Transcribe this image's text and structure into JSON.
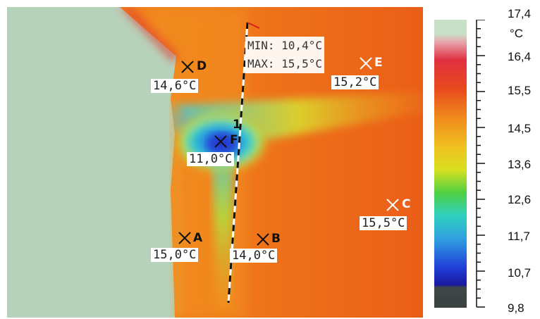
{
  "image": {
    "colors": {
      "background_hot": "#f07a1a",
      "wall": "#b7d2bb",
      "cold_core": "#1a45d6"
    }
  },
  "markers": [
    {
      "id": "A",
      "value": "15,0°C"
    },
    {
      "id": "B",
      "value": "14,0°C"
    },
    {
      "id": "C",
      "value": "15,5°C"
    },
    {
      "id": "D",
      "value": "14,6°C"
    },
    {
      "id": "E",
      "value": "15,2°C"
    },
    {
      "id": "F",
      "value": "11,0°C"
    }
  ],
  "profile_line": {
    "id": "1",
    "min": "MIN: 10,4°C",
    "max": "MAX: 15,5°C"
  },
  "scale": {
    "unit": "°C",
    "labels": [
      "17,4",
      "16,4",
      "15,5",
      "14,5",
      "13,6",
      "12,6",
      "11,7",
      "10,7",
      "9,8"
    ]
  }
}
